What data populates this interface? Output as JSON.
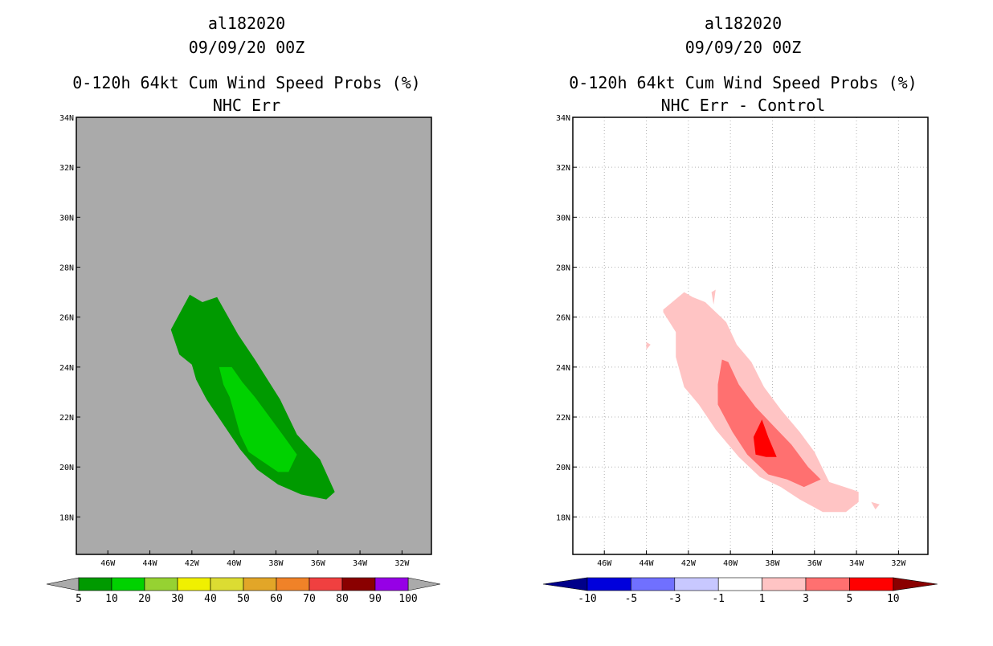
{
  "chart_data": [
    {
      "type": "filled-contour-map",
      "title_lines": [
        "al182020",
        "09/09/20 00Z",
        "0-120h 64kt Cum Wind Speed Probs (%)",
        "NHC Err"
      ],
      "x_axis": {
        "ticks": [
          "46W",
          "44W",
          "42W",
          "40W",
          "38W",
          "36W",
          "34W",
          "32W"
        ],
        "range_lon_deg": [
          -47.5,
          -30.6
        ]
      },
      "y_axis": {
        "ticks": [
          "34N",
          "32N",
          "30N",
          "28N",
          "26N",
          "24N",
          "22N",
          "20N",
          "18N"
        ],
        "range_lat_deg": [
          16.5,
          34.0
        ]
      },
      "background_color": "#aaaaaa",
      "grid": false,
      "contours": [
        {
          "level": 5,
          "color": "#009a00",
          "polygon": [
            [
              -43.0,
              25.5
            ],
            [
              -42.1,
              26.9
            ],
            [
              -41.5,
              26.6
            ],
            [
              -40.8,
              26.8
            ],
            [
              -39.8,
              25.3
            ],
            [
              -39.0,
              24.3
            ],
            [
              -37.8,
              22.7
            ],
            [
              -37.0,
              21.3
            ],
            [
              -35.9,
              20.3
            ],
            [
              -35.2,
              19.0
            ],
            [
              -35.6,
              18.7
            ],
            [
              -36.8,
              18.9
            ],
            [
              -37.9,
              19.3
            ],
            [
              -38.9,
              19.9
            ],
            [
              -39.7,
              20.7
            ],
            [
              -40.5,
              21.7
            ],
            [
              -41.3,
              22.7
            ],
            [
              -41.8,
              23.5
            ],
            [
              -42.0,
              24.1
            ],
            [
              -42.6,
              24.5
            ]
          ]
        },
        {
          "level": 10,
          "color": "#00d200",
          "polygon": [
            [
              -40.7,
              24.0
            ],
            [
              -40.1,
              24.0
            ],
            [
              -39.6,
              23.4
            ],
            [
              -39.0,
              22.8
            ],
            [
              -38.3,
              22.0
            ],
            [
              -37.6,
              21.2
            ],
            [
              -37.0,
              20.5
            ],
            [
              -37.4,
              19.8
            ],
            [
              -37.9,
              19.8
            ],
            [
              -38.6,
              20.2
            ],
            [
              -39.3,
              20.6
            ],
            [
              -39.7,
              21.3
            ],
            [
              -40.0,
              22.2
            ],
            [
              -40.2,
              22.8
            ],
            [
              -40.5,
              23.3
            ]
          ]
        }
      ],
      "colorbar": {
        "labels": [
          "5",
          "10",
          "20",
          "30",
          "40",
          "50",
          "60",
          "70",
          "80",
          "90",
          "100"
        ],
        "colors": [
          "#009a00",
          "#00d200",
          "#96d232",
          "#f0f000",
          "#dcdc32",
          "#e2a628",
          "#f08228",
          "#f04040",
          "#8a0000",
          "#9600e6"
        ],
        "end_colors": [
          "#aaaaaa",
          "#aaaaaa"
        ]
      }
    },
    {
      "type": "filled-contour-map",
      "title_lines": [
        "al182020",
        "09/09/20 00Z",
        "0-120h 64kt Cum Wind Speed Probs (%)",
        "NHC Err - Control"
      ],
      "x_axis": {
        "ticks": [
          "46W",
          "44W",
          "42W",
          "40W",
          "38W",
          "36W",
          "34W",
          "32W"
        ],
        "range_lon_deg": [
          -47.5,
          -30.6
        ]
      },
      "y_axis": {
        "ticks": [
          "34N",
          "32N",
          "30N",
          "28N",
          "26N",
          "24N",
          "22N",
          "20N",
          "18N"
        ],
        "range_lat_deg": [
          16.5,
          34.0
        ]
      },
      "background_color": "#ffffff",
      "grid": true,
      "contours": [
        {
          "level": 1,
          "color": "#ffc4c4",
          "polygon": [
            [
              -43.2,
              26.3
            ],
            [
              -42.2,
              27.0
            ],
            [
              -41.8,
              26.8
            ],
            [
              -41.2,
              26.6
            ],
            [
              -40.2,
              25.8
            ],
            [
              -39.7,
              24.9
            ],
            [
              -39.0,
              24.2
            ],
            [
              -38.4,
              23.2
            ],
            [
              -37.6,
              22.3
            ],
            [
              -36.7,
              21.4
            ],
            [
              -36.0,
              20.6
            ],
            [
              -35.3,
              19.4
            ],
            [
              -34.2,
              19.1
            ],
            [
              -33.9,
              19.0
            ],
            [
              -33.9,
              18.6
            ],
            [
              -34.5,
              18.2
            ],
            [
              -35.6,
              18.2
            ],
            [
              -36.7,
              18.7
            ],
            [
              -37.6,
              19.2
            ],
            [
              -38.6,
              19.6
            ],
            [
              -39.6,
              20.4
            ],
            [
              -40.7,
              21.5
            ],
            [
              -41.5,
              22.5
            ],
            [
              -42.2,
              23.2
            ],
            [
              -42.6,
              24.4
            ],
            [
              -42.6,
              25.4
            ],
            [
              -43.2,
              26.2
            ]
          ]
        },
        {
          "level": 1,
          "color": "#ffc4c4",
          "polygon": [
            [
              -40.9,
              27.0
            ],
            [
              -40.7,
              27.1
            ],
            [
              -40.8,
              26.5
            ]
          ]
        },
        {
          "level": 1,
          "color": "#ffc4c4",
          "polygon": [
            [
              -33.3,
              18.6
            ],
            [
              -32.9,
              18.5
            ],
            [
              -33.1,
              18.3
            ]
          ]
        },
        {
          "level": 1,
          "color": "#ffc4c4",
          "polygon": [
            [
              -44.0,
              25.0
            ],
            [
              -43.8,
              24.9
            ],
            [
              -44.0,
              24.7
            ]
          ]
        },
        {
          "level": 3,
          "color": "#ff7070",
          "polygon": [
            [
              -40.4,
              24.3
            ],
            [
              -40.1,
              24.2
            ],
            [
              -39.6,
              23.3
            ],
            [
              -38.8,
              22.4
            ],
            [
              -37.9,
              21.6
            ],
            [
              -37.1,
              20.9
            ],
            [
              -36.3,
              20.0
            ],
            [
              -35.7,
              19.5
            ],
            [
              -36.5,
              19.2
            ],
            [
              -37.3,
              19.5
            ],
            [
              -38.2,
              19.7
            ],
            [
              -39.2,
              20.5
            ],
            [
              -39.9,
              21.4
            ],
            [
              -40.6,
              22.5
            ],
            [
              -40.6,
              23.3
            ]
          ]
        },
        {
          "level": 5,
          "color": "#ff0000",
          "polygon": [
            [
              -38.5,
              21.9
            ],
            [
              -38.2,
              21.2
            ],
            [
              -37.8,
              20.4
            ],
            [
              -38.3,
              20.4
            ],
            [
              -38.8,
              20.5
            ],
            [
              -38.9,
              21.2
            ]
          ]
        }
      ],
      "colorbar": {
        "labels": [
          "-10",
          "-5",
          "-3",
          "-1",
          "1",
          "3",
          "5",
          "10"
        ],
        "colors": [
          "#0000dc",
          "#7070ff",
          "#c8c8ff",
          "#ffffff",
          "#ffc4c4",
          "#ff7070",
          "#ff0000"
        ],
        "end_colors": [
          "#00008a",
          "#8a0000"
        ]
      }
    }
  ]
}
